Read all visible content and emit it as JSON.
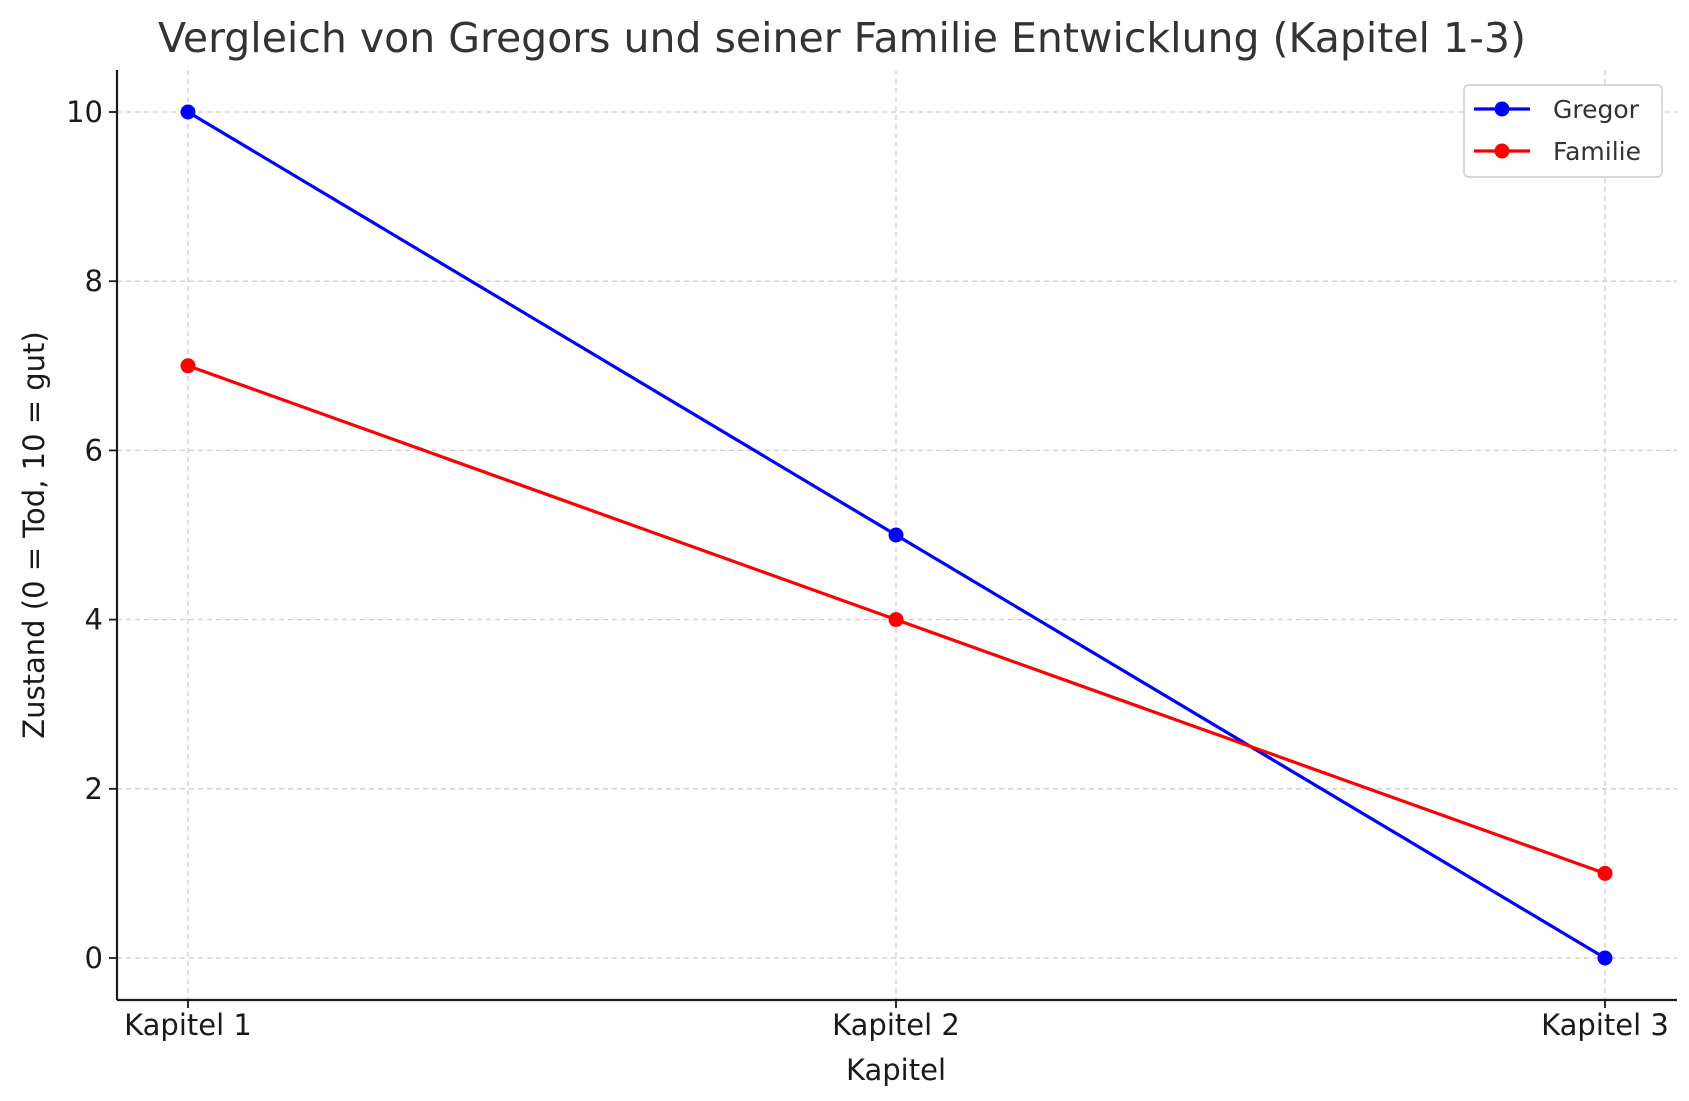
{
  "chart_data": {
    "type": "line",
    "title": "Vergleich von Gregors und seiner Familie Entwicklung (Kapitel 1-3)",
    "xlabel": "Kapitel",
    "ylabel": "Zustand (0 = Tod, 10 = gut)",
    "categories": [
      "Kapitel 1",
      "Kapitel 2",
      "Kapitel 3"
    ],
    "ylim": [
      -0.5,
      10.5
    ],
    "yticks": [
      0,
      2,
      4,
      6,
      8,
      10
    ],
    "grid": true,
    "legend_position": "top-right",
    "series": [
      {
        "name": "Gregor",
        "values": [
          10,
          5,
          0
        ],
        "color": "#0000ff"
      },
      {
        "name": "Familie",
        "values": [
          7,
          4,
          1
        ],
        "color": "#ff0000"
      }
    ]
  }
}
